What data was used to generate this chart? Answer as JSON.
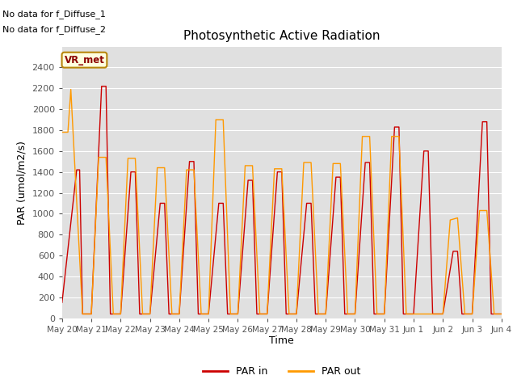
{
  "title": "Photosynthetic Active Radiation",
  "ylabel": "PAR (umol/m2/s)",
  "xlabel": "Time",
  "annotations": [
    "No data for f_Diffuse_1",
    "No data for f_Diffuse_2"
  ],
  "legend_label": "VR_met",
  "ylim": [
    0,
    2600
  ],
  "yticks": [
    0,
    200,
    400,
    600,
    800,
    1000,
    1200,
    1400,
    1600,
    1800,
    2000,
    2200,
    2400
  ],
  "xtick_labels": [
    "May 20",
    "May 21",
    "May 22",
    "May 23",
    "May 24",
    "May 25",
    "May 26",
    "May 27",
    "May 28",
    "May 29",
    "May 30",
    "May 31",
    "Jun 1",
    "Jun 2",
    "Jun 3",
    "Jun 4"
  ],
  "par_in_color": "#cc0000",
  "par_out_color": "#ff9900",
  "bg_color": "#e0e0e0",
  "x_in": [
    0.0,
    0.5,
    0.6,
    0.7,
    1.0,
    1.35,
    1.5,
    1.65,
    2.0,
    2.35,
    2.5,
    2.65,
    3.0,
    3.35,
    3.5,
    3.65,
    4.0,
    4.35,
    4.5,
    4.65,
    5.0,
    5.35,
    5.5,
    5.65,
    6.0,
    6.35,
    6.5,
    6.65,
    7.0,
    7.35,
    7.5,
    7.65,
    8.0,
    8.35,
    8.5,
    8.65,
    9.0,
    9.35,
    9.5,
    9.65,
    10.0,
    10.35,
    10.5,
    10.65,
    11.0,
    11.35,
    11.5,
    11.65,
    12.0,
    12.35,
    12.5,
    12.65,
    13.0,
    13.35,
    13.5,
    13.65,
    14.0,
    14.35,
    14.5,
    14.65,
    15.0
  ],
  "y_in": [
    150,
    1420,
    1420,
    40,
    40,
    2220,
    2220,
    40,
    40,
    1400,
    1400,
    40,
    40,
    1100,
    1100,
    40,
    40,
    1500,
    1500,
    40,
    40,
    1100,
    1100,
    40,
    40,
    1320,
    1320,
    40,
    40,
    1400,
    1400,
    40,
    40,
    1100,
    1100,
    40,
    40,
    1350,
    1350,
    40,
    40,
    1490,
    1490,
    40,
    40,
    1830,
    1830,
    40,
    40,
    1600,
    1600,
    40,
    40,
    640,
    640,
    40,
    40,
    1880,
    1880,
    40,
    40
  ],
  "x_out": [
    0.0,
    0.2,
    0.3,
    0.7,
    1.0,
    1.25,
    1.5,
    1.75,
    2.0,
    2.25,
    2.5,
    2.75,
    3.0,
    3.25,
    3.5,
    3.75,
    4.0,
    4.25,
    4.5,
    4.75,
    5.0,
    5.25,
    5.5,
    5.75,
    6.0,
    6.25,
    6.5,
    6.75,
    7.0,
    7.25,
    7.5,
    7.75,
    8.0,
    8.25,
    8.5,
    8.75,
    9.0,
    9.25,
    9.5,
    9.75,
    10.0,
    10.25,
    10.5,
    10.75,
    11.0,
    11.25,
    11.5,
    11.75,
    12.0,
    12.25,
    12.5,
    12.75,
    13.0,
    13.25,
    13.5,
    13.75,
    14.0,
    14.25,
    14.5,
    14.75,
    15.0
  ],
  "y_out": [
    1780,
    1780,
    2190,
    40,
    40,
    1540,
    1540,
    40,
    40,
    1530,
    1530,
    40,
    40,
    1440,
    1440,
    40,
    40,
    1420,
    1420,
    40,
    40,
    1900,
    1900,
    40,
    40,
    1460,
    1460,
    40,
    40,
    1430,
    1430,
    40,
    40,
    1490,
    1490,
    40,
    40,
    1480,
    1480,
    40,
    40,
    1740,
    1740,
    40,
    40,
    1740,
    1740,
    40,
    40,
    40,
    40,
    40,
    40,
    940,
    960,
    40,
    40,
    1030,
    1030,
    40,
    40
  ]
}
